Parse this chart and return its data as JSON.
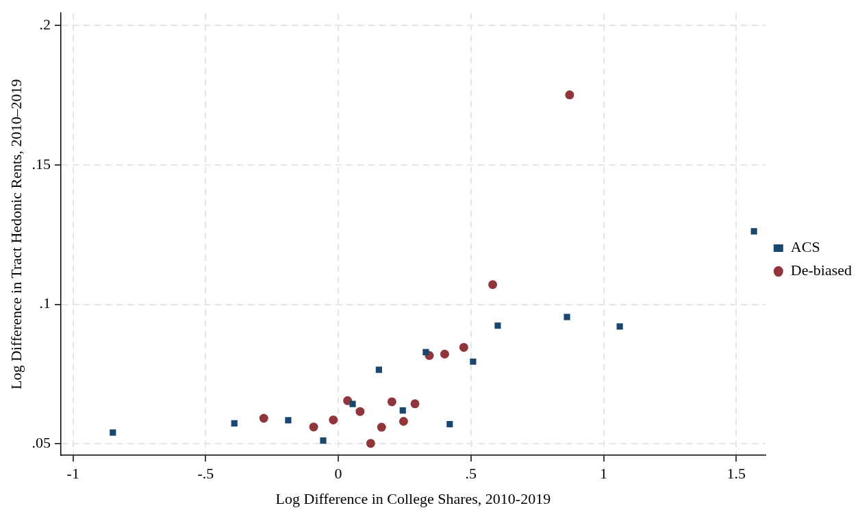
{
  "chart_data": {
    "type": "scatter",
    "xlabel": "Log Difference in College Shares, 2010-2019",
    "ylabel": "Log Difference in Tract Hedonic Rents, 2010–2019",
    "xlim": [
      -1.046,
      1.61
    ],
    "ylim": [
      0.0459,
      0.2044
    ],
    "xticks": [
      {
        "value": -1,
        "label": "-1"
      },
      {
        "value": -0.5,
        "label": "-.5"
      },
      {
        "value": 0,
        "label": "0"
      },
      {
        "value": 0.5,
        "label": ".5"
      },
      {
        "value": 1,
        "label": "1"
      },
      {
        "value": 1.5,
        "label": "1.5"
      }
    ],
    "yticks": [
      {
        "value": 0.05,
        "label": ".05"
      },
      {
        "value": 0.1,
        "label": ".1"
      },
      {
        "value": 0.15,
        "label": ".15"
      },
      {
        "value": 0.2,
        "label": ".2"
      }
    ],
    "grid": true,
    "legend": "right",
    "series": [
      {
        "name": "ACS",
        "color": "#1a476f",
        "marker": "square",
        "x": [
          -0.85,
          -0.392,
          -0.189,
          -0.057,
          0.054,
          0.153,
          0.243,
          0.33,
          0.42,
          0.508,
          0.601,
          0.862,
          1.061,
          1.567
        ],
        "values": [
          0.0541,
          0.0574,
          0.0585,
          0.0512,
          0.0643,
          0.0766,
          0.062,
          0.0829,
          0.0571,
          0.0795,
          0.0924,
          0.0955,
          0.0921,
          0.1262
        ]
      },
      {
        "name": "De-biased",
        "color": "#90353b",
        "marker": "circle",
        "x": [
          -0.281,
          -0.093,
          -0.019,
          0.035,
          0.082,
          0.122,
          0.163,
          0.202,
          0.246,
          0.289,
          0.343,
          0.401,
          0.473,
          0.582,
          0.872
        ],
        "values": [
          0.0592,
          0.0561,
          0.0586,
          0.0655,
          0.0616,
          0.0502,
          0.056,
          0.0651,
          0.0581,
          0.0644,
          0.0817,
          0.0822,
          0.0846,
          0.1071,
          0.1751
        ]
      }
    ]
  }
}
